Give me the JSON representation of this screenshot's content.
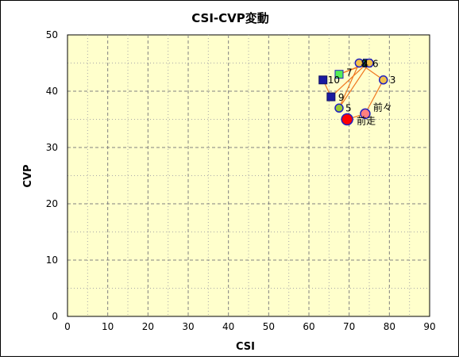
{
  "chart_data": {
    "type": "scatter",
    "title": "CSI-CVP変動",
    "xlabel": "CSI",
    "ylabel": "CVP",
    "xlim": [
      0,
      90
    ],
    "ylim": [
      0,
      50
    ],
    "xticks": [
      0,
      10,
      20,
      30,
      40,
      50,
      60,
      70,
      80,
      90
    ],
    "yticks": [
      0,
      10,
      20,
      30,
      40,
      50
    ],
    "grid": true,
    "background": "#FFFFCC",
    "line_color": "#F07820",
    "path_order": [
      "前走",
      "前々",
      "3",
      "4",
      "5",
      "6",
      "7",
      "8",
      "9",
      "10"
    ],
    "points": [
      {
        "label": "前走",
        "x": 69.5,
        "y": 35,
        "marker": "circle",
        "fill": "#FF0000",
        "stroke": "#2020C0",
        "size": "large"
      },
      {
        "label": "前々",
        "x": 74,
        "y": 36,
        "marker": "circle",
        "fill": "#FF8080",
        "stroke": "#2020C0",
        "size": "medium"
      },
      {
        "label": "3",
        "x": 78.5,
        "y": 42,
        "marker": "circle",
        "fill": "#F2C04A",
        "stroke": "#2020C0",
        "size": "small"
      },
      {
        "label": "4",
        "x": 72.5,
        "y": 45,
        "marker": "circle",
        "fill": "#F2C04A",
        "stroke": "#2020C0",
        "size": "small"
      },
      {
        "label": "5",
        "x": 67.5,
        "y": 37,
        "marker": "circle",
        "fill": "#99CC33",
        "stroke": "#2020C0",
        "size": "small"
      },
      {
        "label": "6",
        "x": 75,
        "y": 45,
        "marker": "circle",
        "fill": "#F2C04A",
        "stroke": "#2020C0",
        "size": "small"
      },
      {
        "label": "7",
        "x": 67.5,
        "y": 43,
        "marker": "square",
        "fill": "#55EE55",
        "stroke": "#2020C0",
        "size": "small"
      },
      {
        "label": "8",
        "x": 74.5,
        "y": 45,
        "marker": "square",
        "fill": "#228833",
        "stroke": "#1A1A80",
        "size": "small"
      },
      {
        "label": "9",
        "x": 65.5,
        "y": 39,
        "marker": "square",
        "fill": "#1A1AA0",
        "stroke": "#101060",
        "size": "small"
      },
      {
        "label": "10",
        "x": 63.5,
        "y": 42,
        "marker": "square",
        "fill": "#1A1AA0",
        "stroke": "#101060",
        "size": "small"
      }
    ]
  }
}
